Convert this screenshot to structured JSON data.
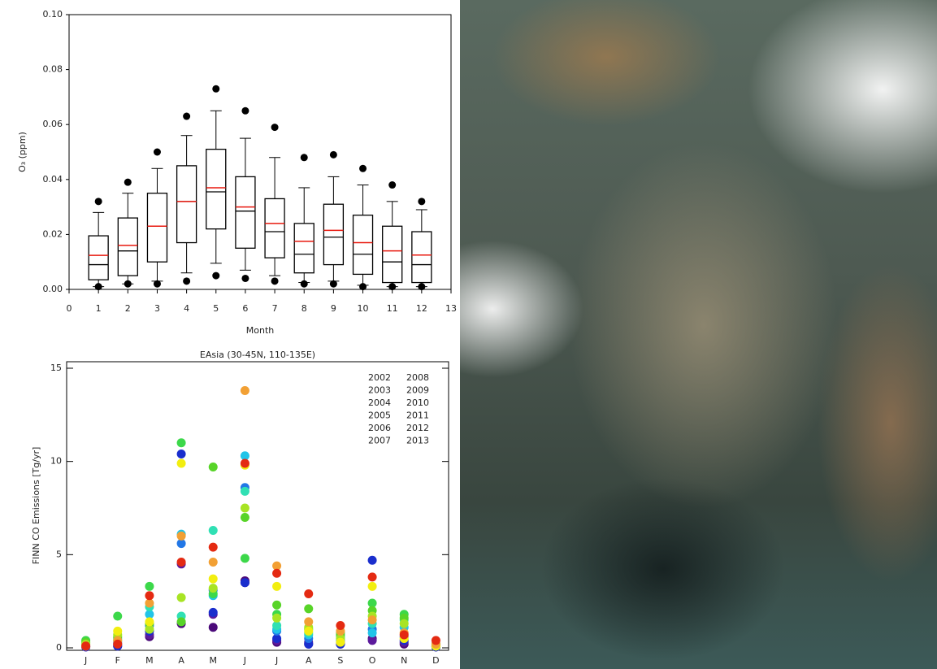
{
  "chart_data": [
    {
      "type": "box",
      "xlabel": "Month",
      "ylabel": "O₃ (ppm)",
      "x": [
        1,
        2,
        3,
        4,
        5,
        6,
        7,
        8,
        9,
        10,
        11,
        12
      ],
      "low": [
        0.001,
        0.002,
        0.003,
        0.006,
        0.0095,
        0.007,
        0.005,
        0.0025,
        0.003,
        0.0015,
        0.001,
        0.001
      ],
      "q1": [
        0.0035,
        0.005,
        0.01,
        0.017,
        0.022,
        0.015,
        0.0115,
        0.006,
        0.009,
        0.0055,
        0.0025,
        0.0025
      ],
      "median": [
        0.009,
        0.014,
        0.023,
        0.032,
        0.0355,
        0.0285,
        0.021,
        0.0128,
        0.019,
        0.0128,
        0.01,
        0.009
      ],
      "mean": [
        0.0124,
        0.016,
        0.023,
        0.032,
        0.037,
        0.03,
        0.024,
        0.0175,
        0.0215,
        0.017,
        0.014,
        0.0125
      ],
      "q3": [
        0.0195,
        0.026,
        0.035,
        0.045,
        0.051,
        0.041,
        0.033,
        0.024,
        0.031,
        0.027,
        0.023,
        0.021
      ],
      "high": [
        0.028,
        0.035,
        0.044,
        0.056,
        0.065,
        0.055,
        0.048,
        0.037,
        0.041,
        0.038,
        0.032,
        0.029
      ],
      "outliers_high": [
        0.032,
        0.039,
        0.05,
        0.063,
        0.073,
        0.065,
        0.059,
        0.048,
        0.049,
        0.044,
        0.038,
        0.032
      ],
      "outliers_low": [
        0.001,
        0.002,
        0.002,
        0.003,
        0.005,
        0.004,
        0.003,
        0.002,
        0.002,
        0.001,
        0.001,
        0.001
      ],
      "median_color": "#000000",
      "mean_color": "#e8190f",
      "xlim": [
        0,
        13
      ],
      "xticks": [
        0,
        1,
        2,
        3,
        4,
        5,
        6,
        7,
        8,
        9,
        10,
        11,
        12,
        13
      ],
      "ylim": [
        0,
        0.1
      ],
      "yticks": [
        {
          "value": 0,
          "label": "0.00"
        },
        {
          "value": 0.02,
          "label": "0.02"
        },
        {
          "value": 0.04,
          "label": "0.04"
        },
        {
          "value": 0.06,
          "label": "0.06"
        },
        {
          "value": 0.08,
          "label": "0.08"
        },
        {
          "value": 0.1,
          "label": "0.10"
        }
      ]
    },
    {
      "type": "scatter",
      "title": "EAsia (30-45N, 110-135E)",
      "ylabel": "FINN CO Emissions [Tg/yr]",
      "categories": [
        "J",
        "F",
        "M",
        "A",
        "M",
        "J",
        "J",
        "A",
        "S",
        "O",
        "N",
        "D"
      ],
      "ylim": [
        0,
        15
      ],
      "yticks": [
        0,
        5,
        10,
        15
      ],
      "series": [
        {
          "name": "2002",
          "color": "#4b0a7a",
          "values": [
            0.05,
            0.1,
            0.6,
            1.3,
            1.1,
            3.6,
            0.3,
            0.2,
            0.2,
            0.5,
            0.2,
            0.05
          ]
        },
        {
          "name": "2003",
          "color": "#5c1a9c",
          "values": [
            0.1,
            0.2,
            0.7,
            4.5,
            1.8,
            3.5,
            0.4,
            0.3,
            0.3,
            0.4,
            0.3,
            0.1
          ]
        },
        {
          "name": "2004",
          "color": "#1a2ecd",
          "values": [
            0.05,
            0.1,
            0.9,
            10.4,
            1.9,
            3.5,
            0.5,
            0.2,
            0.2,
            4.7,
            0.4,
            0.05
          ]
        },
        {
          "name": "2005",
          "color": "#2277e6",
          "values": [
            0.1,
            0.3,
            1.2,
            5.6,
            3.1,
            8.6,
            0.9,
            0.5,
            0.4,
            1.0,
            0.6,
            0.1
          ]
        },
        {
          "name": "2006",
          "color": "#22c4e8",
          "values": [
            0.1,
            0.4,
            1.8,
            6.1,
            2.8,
            10.3,
            1.0,
            0.7,
            0.6,
            0.8,
            1.1,
            0.1
          ]
        },
        {
          "name": "2007",
          "color": "#30e0b4",
          "values": [
            0.2,
            0.5,
            2.2,
            1.7,
            6.3,
            8.4,
            1.2,
            0.8,
            0.5,
            1.3,
            1.5,
            0.2
          ]
        },
        {
          "name": "2008",
          "color": "#3cd84a",
          "values": [
            0.4,
            1.7,
            3.3,
            11.0,
            2.9,
            4.8,
            1.8,
            1.0,
            0.8,
            2.4,
            1.8,
            0.1
          ]
        },
        {
          "name": "2009",
          "color": "#58d428",
          "values": [
            0.3,
            0.6,
            1.3,
            1.4,
            9.7,
            7.0,
            2.3,
            2.1,
            0.7,
            2.0,
            1.6,
            0.2
          ]
        },
        {
          "name": "2010",
          "color": "#a8e424",
          "values": [
            0.2,
            0.7,
            1.0,
            2.7,
            3.2,
            7.5,
            1.6,
            1.1,
            0.5,
            1.7,
            1.3,
            0.1
          ]
        },
        {
          "name": "2011",
          "color": "#f2ee10",
          "values": [
            0.1,
            0.9,
            1.4,
            9.9,
            3.7,
            9.8,
            3.3,
            0.9,
            0.3,
            3.3,
            0.5,
            0.1
          ]
        },
        {
          "name": "2012",
          "color": "#f2a034",
          "values": [
            0.1,
            0.4,
            2.4,
            6.0,
            4.6,
            13.8,
            4.4,
            1.4,
            0.9,
            1.5,
            0.8,
            0.2
          ]
        },
        {
          "name": "2013",
          "color": "#e42a12",
          "values": [
            0.1,
            0.2,
            2.8,
            4.6,
            5.4,
            9.9,
            4.0,
            2.9,
            1.2,
            3.8,
            0.7,
            0.4
          ]
        }
      ]
    }
  ]
}
